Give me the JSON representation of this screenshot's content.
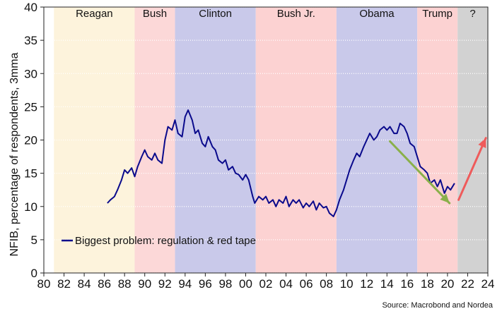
{
  "chart_data": {
    "type": "line",
    "ylabel": "NFIB, percentage of respondents, 3mma",
    "xlabel": "",
    "ylim": [
      0,
      40
    ],
    "yticks": [
      0,
      5,
      10,
      15,
      20,
      25,
      30,
      35,
      40
    ],
    "xlim": [
      1980,
      2024
    ],
    "xticks": [
      1980,
      1982,
      1984,
      1986,
      1988,
      1990,
      1992,
      1994,
      1996,
      1998,
      2000,
      2002,
      2004,
      2006,
      2008,
      2010,
      2012,
      2014,
      2016,
      2018,
      2020,
      2022,
      2024
    ],
    "xticklabels": [
      "80",
      "82",
      "84",
      "86",
      "88",
      "90",
      "92",
      "94",
      "96",
      "98",
      "00",
      "02",
      "04",
      "06",
      "08",
      "10",
      "12",
      "14",
      "16",
      "18",
      "20",
      "22",
      "24"
    ],
    "grid": true,
    "legend_position": "lower-left",
    "source": "Source: Macrobond and Nordea",
    "eras": [
      {
        "label": "Reagan",
        "start": 1981.0,
        "end": 1989.0,
        "color": "#fdf3dc"
      },
      {
        "label": "Bush",
        "start": 1989.0,
        "end": 1993.0,
        "color": "#fcd8d8"
      },
      {
        "label": "Clinton",
        "start": 1993.0,
        "end": 2001.0,
        "color": "#c9c9ea"
      },
      {
        "label": "Bush Jr.",
        "start": 2001.0,
        "end": 2009.0,
        "color": "#fcd2d2"
      },
      {
        "label": "Obama",
        "start": 2009.0,
        "end": 2017.0,
        "color": "#c9c9ea"
      },
      {
        "label": "Trump",
        "start": 2017.0,
        "end": 2021.0,
        "color": "#fcd2d2"
      },
      {
        "label": "?",
        "start": 2021.0,
        "end": 2024.0,
        "color": "#d2d2d2"
      }
    ],
    "series": [
      {
        "name": "Biggest problem: regulation & red tape",
        "color": "#0a0a8c",
        "x": [
          1986.3,
          1986.6,
          1987.0,
          1987.3,
          1987.7,
          1988.0,
          1988.3,
          1988.7,
          1989.0,
          1989.3,
          1989.7,
          1990.0,
          1990.3,
          1990.7,
          1991.0,
          1991.3,
          1991.7,
          1992.0,
          1992.3,
          1992.7,
          1993.0,
          1993.3,
          1993.7,
          1994.0,
          1994.3,
          1994.7,
          1995.0,
          1995.3,
          1995.7,
          1996.0,
          1996.3,
          1996.7,
          1997.0,
          1997.3,
          1997.7,
          1998.0,
          1998.3,
          1998.7,
          1999.0,
          1999.3,
          1999.7,
          2000.0,
          2000.3,
          2000.7,
          2000.9,
          2001.3,
          2001.7,
          2002.0,
          2002.3,
          2002.7,
          2003.0,
          2003.3,
          2003.7,
          2004.0,
          2004.3,
          2004.7,
          2005.0,
          2005.3,
          2005.7,
          2006.0,
          2006.3,
          2006.7,
          2007.0,
          2007.3,
          2007.7,
          2008.0,
          2008.3,
          2008.7,
          2009.0,
          2009.3,
          2009.7,
          2010.0,
          2010.3,
          2010.7,
          2011.0,
          2011.3,
          2011.7,
          2012.0,
          2012.3,
          2012.7,
          2013.0,
          2013.3,
          2013.7,
          2014.0,
          2014.3,
          2014.7,
          2015.0,
          2015.3,
          2015.7,
          2016.0,
          2016.3,
          2016.7,
          2017.0,
          2017.3,
          2017.7,
          2018.0,
          2018.3,
          2018.7,
          2019.0,
          2019.3,
          2019.7,
          2020.0,
          2020.3,
          2020.7
        ],
        "y": [
          10.5,
          11.0,
          11.5,
          12.5,
          14.0,
          15.5,
          15.0,
          15.8,
          14.5,
          16.0,
          17.5,
          18.5,
          17.5,
          17.0,
          18.0,
          17.0,
          16.5,
          20.0,
          22.0,
          21.5,
          23.0,
          21.0,
          20.5,
          23.5,
          24.5,
          23.0,
          21.0,
          21.5,
          19.5,
          19.0,
          20.5,
          19.0,
          18.5,
          17.0,
          16.5,
          17.0,
          15.5,
          16.0,
          15.0,
          14.8,
          14.0,
          14.8,
          14.0,
          11.5,
          10.5,
          11.5,
          11.0,
          11.5,
          10.5,
          11.0,
          10.0,
          11.0,
          10.5,
          11.5,
          10.0,
          11.0,
          10.5,
          11.0,
          9.8,
          10.5,
          10.0,
          10.8,
          9.5,
          10.5,
          9.8,
          10.0,
          9.0,
          8.5,
          9.5,
          11.0,
          12.5,
          14.0,
          15.5,
          17.0,
          18.0,
          17.5,
          19.0,
          20.0,
          21.0,
          20.0,
          20.5,
          21.5,
          22.0,
          21.5,
          22.0,
          21.0,
          21.0,
          22.5,
          22.0,
          21.0,
          19.5,
          19.0,
          17.5,
          16.0,
          15.5,
          15.0,
          13.5,
          14.0,
          13.0,
          14.0,
          12.0,
          13.0,
          12.5,
          13.5
        ]
      }
    ],
    "arrows": [
      {
        "color": "#8ab04a",
        "x1": 2014.3,
        "y1": 19.8,
        "x2": 2020.2,
        "y2": 10.5
      },
      {
        "color": "#ef5b5b",
        "x1": 2021.1,
        "y1": 11.0,
        "x2": 2023.8,
        "y2": 20.3
      }
    ]
  }
}
